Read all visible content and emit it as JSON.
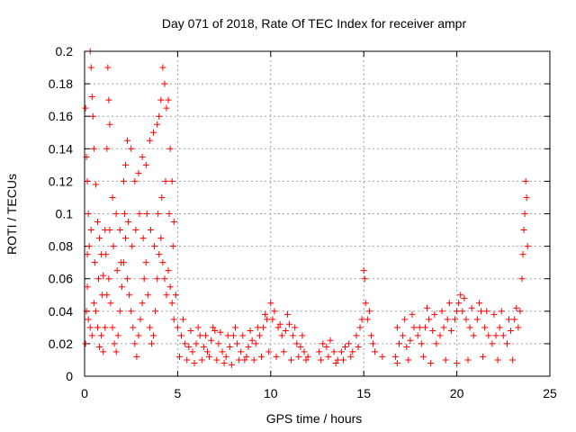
{
  "chart_data": {
    "type": "scatter",
    "title": "Day 071 of 2018, Rate Of TEC Index for receiver ampr",
    "xlabel": "GPS time / hours",
    "ylabel": "ROTI / TECUs",
    "xlim": [
      0,
      25
    ],
    "ylim": [
      0,
      0.2
    ],
    "x_ticks": [
      0,
      5,
      10,
      15,
      20,
      25
    ],
    "x_tick_labels": [
      "0",
      "5",
      "10",
      "15",
      "20",
      "25"
    ],
    "y_ticks": [
      0,
      0.02,
      0.04,
      0.06,
      0.08,
      0.1,
      0.12,
      0.14,
      0.16,
      0.18,
      0.2
    ],
    "y_tick_labels": [
      "0",
      "0.02",
      "0.04",
      "0.06",
      "0.08",
      "0.1",
      "0.12",
      "0.14",
      "0.16",
      "0.18",
      "0.2"
    ],
    "grid": true,
    "marker": "+",
    "color": "#ff0000",
    "series": [
      {
        "name": "ROTI",
        "points": [
          [
            0.05,
            0.165
          ],
          [
            0.1,
            0.135
          ],
          [
            0.15,
            0.12
          ],
          [
            0.2,
            0.1
          ],
          [
            0.25,
            0.08
          ],
          [
            0.3,
            0.2
          ],
          [
            0.35,
            0.19
          ],
          [
            0.4,
            0.172
          ],
          [
            0.45,
            0.16
          ],
          [
            0.5,
            0.14
          ],
          [
            0.6,
            0.118
          ],
          [
            0.7,
            0.095
          ],
          [
            0.8,
            0.085
          ],
          [
            0.9,
            0.075
          ],
          [
            1.0,
            0.062
          ],
          [
            1.1,
            0.09
          ],
          [
            1.2,
            0.14
          ],
          [
            1.25,
            0.19
          ],
          [
            1.3,
            0.17
          ],
          [
            1.35,
            0.155
          ],
          [
            1.5,
            0.11
          ],
          [
            1.7,
            0.1
          ],
          [
            1.9,
            0.09
          ],
          [
            2.1,
            0.12
          ],
          [
            2.2,
            0.13
          ],
          [
            2.3,
            0.145
          ],
          [
            2.5,
            0.14
          ],
          [
            2.7,
            0.12
          ],
          [
            2.9,
            0.125
          ],
          [
            3.1,
            0.135
          ],
          [
            3.3,
            0.13
          ],
          [
            3.5,
            0.145
          ],
          [
            3.7,
            0.15
          ],
          [
            3.9,
            0.155
          ],
          [
            4.0,
            0.16
          ],
          [
            4.1,
            0.17
          ],
          [
            4.2,
            0.19
          ],
          [
            4.3,
            0.18
          ],
          [
            4.4,
            0.165
          ],
          [
            4.5,
            0.17
          ],
          [
            4.6,
            0.14
          ],
          [
            4.7,
            0.12
          ],
          [
            4.8,
            0.095
          ],
          [
            0.05,
            0.02
          ],
          [
            0.1,
            0.04
          ],
          [
            0.15,
            0.055
          ],
          [
            0.2,
            0.035
          ],
          [
            0.3,
            0.03
          ],
          [
            0.4,
            0.025
          ],
          [
            0.5,
            0.045
          ],
          [
            0.6,
            0.04
          ],
          [
            0.7,
            0.03
          ],
          [
            0.8,
            0.018
          ],
          [
            0.9,
            0.025
          ],
          [
            1.0,
            0.015
          ],
          [
            1.1,
            0.03
          ],
          [
            1.2,
            0.05
          ],
          [
            1.3,
            0.06
          ],
          [
            1.4,
            0.045
          ],
          [
            1.5,
            0.03
          ],
          [
            1.6,
            0.02
          ],
          [
            1.7,
            0.015
          ],
          [
            1.8,
            0.025
          ],
          [
            1.9,
            0.04
          ],
          [
            2.0,
            0.055
          ],
          [
            2.1,
            0.07
          ],
          [
            2.2,
            0.085
          ],
          [
            2.3,
            0.06
          ],
          [
            2.4,
            0.05
          ],
          [
            2.5,
            0.04
          ],
          [
            2.6,
            0.03
          ],
          [
            2.7,
            0.02
          ],
          [
            2.8,
            0.012
          ],
          [
            2.9,
            0.025
          ],
          [
            3.0,
            0.035
          ],
          [
            3.1,
            0.045
          ],
          [
            3.2,
            0.06
          ],
          [
            3.3,
            0.07
          ],
          [
            3.4,
            0.05
          ],
          [
            3.5,
            0.03
          ],
          [
            3.6,
            0.02
          ],
          [
            3.7,
            0.025
          ],
          [
            3.8,
            0.04
          ],
          [
            3.9,
            0.06
          ],
          [
            4.0,
            0.075
          ],
          [
            4.1,
            0.085
          ],
          [
            4.2,
            0.07
          ],
          [
            4.3,
            0.06
          ],
          [
            4.4,
            0.05
          ],
          [
            4.5,
            0.065
          ],
          [
            4.6,
            0.055
          ],
          [
            4.7,
            0.045
          ],
          [
            4.8,
            0.035
          ],
          [
            4.9,
            0.05
          ],
          [
            0.15,
            0.075
          ],
          [
            0.35,
            0.09
          ],
          [
            0.55,
            0.07
          ],
          [
            0.75,
            0.06
          ],
          [
            0.95,
            0.05
          ],
          [
            1.15,
            0.075
          ],
          [
            1.35,
            0.09
          ],
          [
            1.55,
            0.08
          ],
          [
            1.75,
            0.065
          ],
          [
            1.95,
            0.07
          ],
          [
            2.15,
            0.1
          ],
          [
            2.35,
            0.095
          ],
          [
            2.55,
            0.08
          ],
          [
            2.75,
            0.09
          ],
          [
            2.95,
            0.1
          ],
          [
            3.15,
            0.085
          ],
          [
            3.35,
            0.1
          ],
          [
            3.55,
            0.09
          ],
          [
            3.75,
            0.08
          ],
          [
            3.95,
            0.1
          ],
          [
            4.15,
            0.11
          ],
          [
            4.35,
            0.12
          ],
          [
            4.55,
            0.1
          ],
          [
            4.75,
            0.08
          ],
          [
            5.0,
            0.03
          ],
          [
            5.2,
            0.025
          ],
          [
            5.4,
            0.02
          ],
          [
            5.6,
            0.018
          ],
          [
            5.8,
            0.015
          ],
          [
            6.0,
            0.02
          ],
          [
            6.2,
            0.025
          ],
          [
            6.4,
            0.018
          ],
          [
            6.6,
            0.015
          ],
          [
            6.8,
            0.022
          ],
          [
            7.0,
            0.028
          ],
          [
            7.2,
            0.02
          ],
          [
            7.4,
            0.015
          ],
          [
            7.6,
            0.012
          ],
          [
            7.8,
            0.018
          ],
          [
            8.0,
            0.025
          ],
          [
            8.2,
            0.02
          ],
          [
            8.4,
            0.015
          ],
          [
            8.6,
            0.01
          ],
          [
            8.8,
            0.018
          ],
          [
            9.0,
            0.022
          ],
          [
            9.2,
            0.02
          ],
          [
            9.4,
            0.025
          ],
          [
            9.6,
            0.03
          ],
          [
            9.8,
            0.035
          ],
          [
            10.0,
            0.045
          ],
          [
            10.2,
            0.04
          ],
          [
            10.4,
            0.03
          ],
          [
            10.6,
            0.025
          ],
          [
            10.8,
            0.028
          ],
          [
            11.0,
            0.032
          ],
          [
            11.2,
            0.025
          ],
          [
            11.4,
            0.02
          ],
          [
            11.6,
            0.018
          ],
          [
            11.8,
            0.015
          ],
          [
            12.0,
            0.012
          ],
          [
            5.1,
            0.012
          ],
          [
            5.5,
            0.01
          ],
          [
            5.9,
            0.008
          ],
          [
            6.3,
            0.01
          ],
          [
            6.7,
            0.012
          ],
          [
            7.1,
            0.01
          ],
          [
            7.5,
            0.008
          ],
          [
            7.9,
            0.007
          ],
          [
            8.3,
            0.01
          ],
          [
            8.7,
            0.012
          ],
          [
            9.1,
            0.01
          ],
          [
            9.5,
            0.012
          ],
          [
            9.9,
            0.015
          ],
          [
            10.3,
            0.012
          ],
          [
            10.7,
            0.015
          ],
          [
            11.1,
            0.01
          ],
          [
            11.5,
            0.012
          ],
          [
            11.9,
            0.01
          ],
          [
            5.3,
            0.035
          ],
          [
            5.7,
            0.028
          ],
          [
            6.1,
            0.03
          ],
          [
            6.5,
            0.025
          ],
          [
            6.9,
            0.03
          ],
          [
            7.3,
            0.027
          ],
          [
            7.7,
            0.025
          ],
          [
            8.1,
            0.03
          ],
          [
            8.5,
            0.025
          ],
          [
            8.9,
            0.028
          ],
          [
            9.3,
            0.03
          ],
          [
            9.7,
            0.038
          ],
          [
            10.1,
            0.035
          ],
          [
            10.5,
            0.032
          ],
          [
            10.9,
            0.038
          ],
          [
            11.3,
            0.03
          ],
          [
            11.7,
            0.025
          ],
          [
            12.6,
            0.015
          ],
          [
            12.8,
            0.02
          ],
          [
            13.0,
            0.018
          ],
          [
            13.2,
            0.022
          ],
          [
            13.4,
            0.015
          ],
          [
            13.6,
            0.01
          ],
          [
            13.8,
            0.015
          ],
          [
            14.0,
            0.018
          ],
          [
            14.2,
            0.02
          ],
          [
            14.4,
            0.015
          ],
          [
            14.6,
            0.025
          ],
          [
            14.8,
            0.03
          ],
          [
            14.9,
            0.035
          ],
          [
            15.0,
            0.065
          ],
          [
            15.05,
            0.06
          ],
          [
            15.1,
            0.045
          ],
          [
            15.2,
            0.035
          ],
          [
            15.3,
            0.04
          ],
          [
            15.4,
            0.025
          ],
          [
            15.6,
            0.015
          ],
          [
            16.0,
            0.012
          ],
          [
            12.7,
            0.01
          ],
          [
            13.1,
            0.012
          ],
          [
            13.5,
            0.008
          ],
          [
            13.9,
            0.01
          ],
          [
            14.3,
            0.012
          ],
          [
            14.7,
            0.018
          ],
          [
            15.5,
            0.02
          ],
          [
            16.7,
            0.012
          ],
          [
            16.9,
            0.02
          ],
          [
            17.1,
            0.025
          ],
          [
            17.3,
            0.018
          ],
          [
            17.5,
            0.022
          ],
          [
            17.7,
            0.03
          ],
          [
            17.9,
            0.025
          ],
          [
            18.1,
            0.02
          ],
          [
            18.3,
            0.03
          ],
          [
            18.5,
            0.035
          ],
          [
            18.7,
            0.028
          ],
          [
            18.9,
            0.02
          ],
          [
            19.1,
            0.025
          ],
          [
            19.3,
            0.03
          ],
          [
            19.5,
            0.035
          ],
          [
            19.7,
            0.028
          ],
          [
            19.9,
            0.035
          ],
          [
            20.1,
            0.045
          ],
          [
            20.2,
            0.05
          ],
          [
            20.3,
            0.04
          ],
          [
            20.5,
            0.035
          ],
          [
            20.7,
            0.03
          ],
          [
            20.9,
            0.025
          ],
          [
            21.1,
            0.035
          ],
          [
            21.3,
            0.04
          ],
          [
            21.5,
            0.03
          ],
          [
            21.7,
            0.025
          ],
          [
            21.9,
            0.02
          ],
          [
            22.1,
            0.025
          ],
          [
            22.3,
            0.03
          ],
          [
            22.5,
            0.025
          ],
          [
            22.7,
            0.02
          ],
          [
            22.9,
            0.028
          ],
          [
            23.1,
            0.035
          ],
          [
            23.3,
            0.03
          ],
          [
            23.4,
            0.04
          ],
          [
            23.5,
            0.06
          ],
          [
            23.55,
            0.075
          ],
          [
            23.6,
            0.09
          ],
          [
            23.65,
            0.1
          ],
          [
            23.7,
            0.12
          ],
          [
            23.75,
            0.11
          ],
          [
            23.8,
            0.08
          ],
          [
            16.8,
            0.03
          ],
          [
            17.2,
            0.035
          ],
          [
            17.6,
            0.038
          ],
          [
            18.0,
            0.03
          ],
          [
            18.4,
            0.042
          ],
          [
            18.8,
            0.038
          ],
          [
            19.2,
            0.04
          ],
          [
            19.6,
            0.045
          ],
          [
            20.0,
            0.04
          ],
          [
            20.4,
            0.048
          ],
          [
            20.8,
            0.042
          ],
          [
            21.2,
            0.045
          ],
          [
            21.6,
            0.04
          ],
          [
            22.0,
            0.038
          ],
          [
            22.4,
            0.04
          ],
          [
            22.8,
            0.035
          ],
          [
            23.2,
            0.042
          ],
          [
            16.8,
            0.008
          ],
          [
            17.4,
            0.01
          ],
          [
            18.2,
            0.012
          ],
          [
            18.6,
            0.008
          ],
          [
            19.4,
            0.01
          ],
          [
            20.0,
            0.008
          ],
          [
            20.6,
            0.01
          ],
          [
            21.4,
            0.012
          ],
          [
            22.2,
            0.01
          ],
          [
            23.0,
            0.01
          ]
        ]
      }
    ]
  }
}
